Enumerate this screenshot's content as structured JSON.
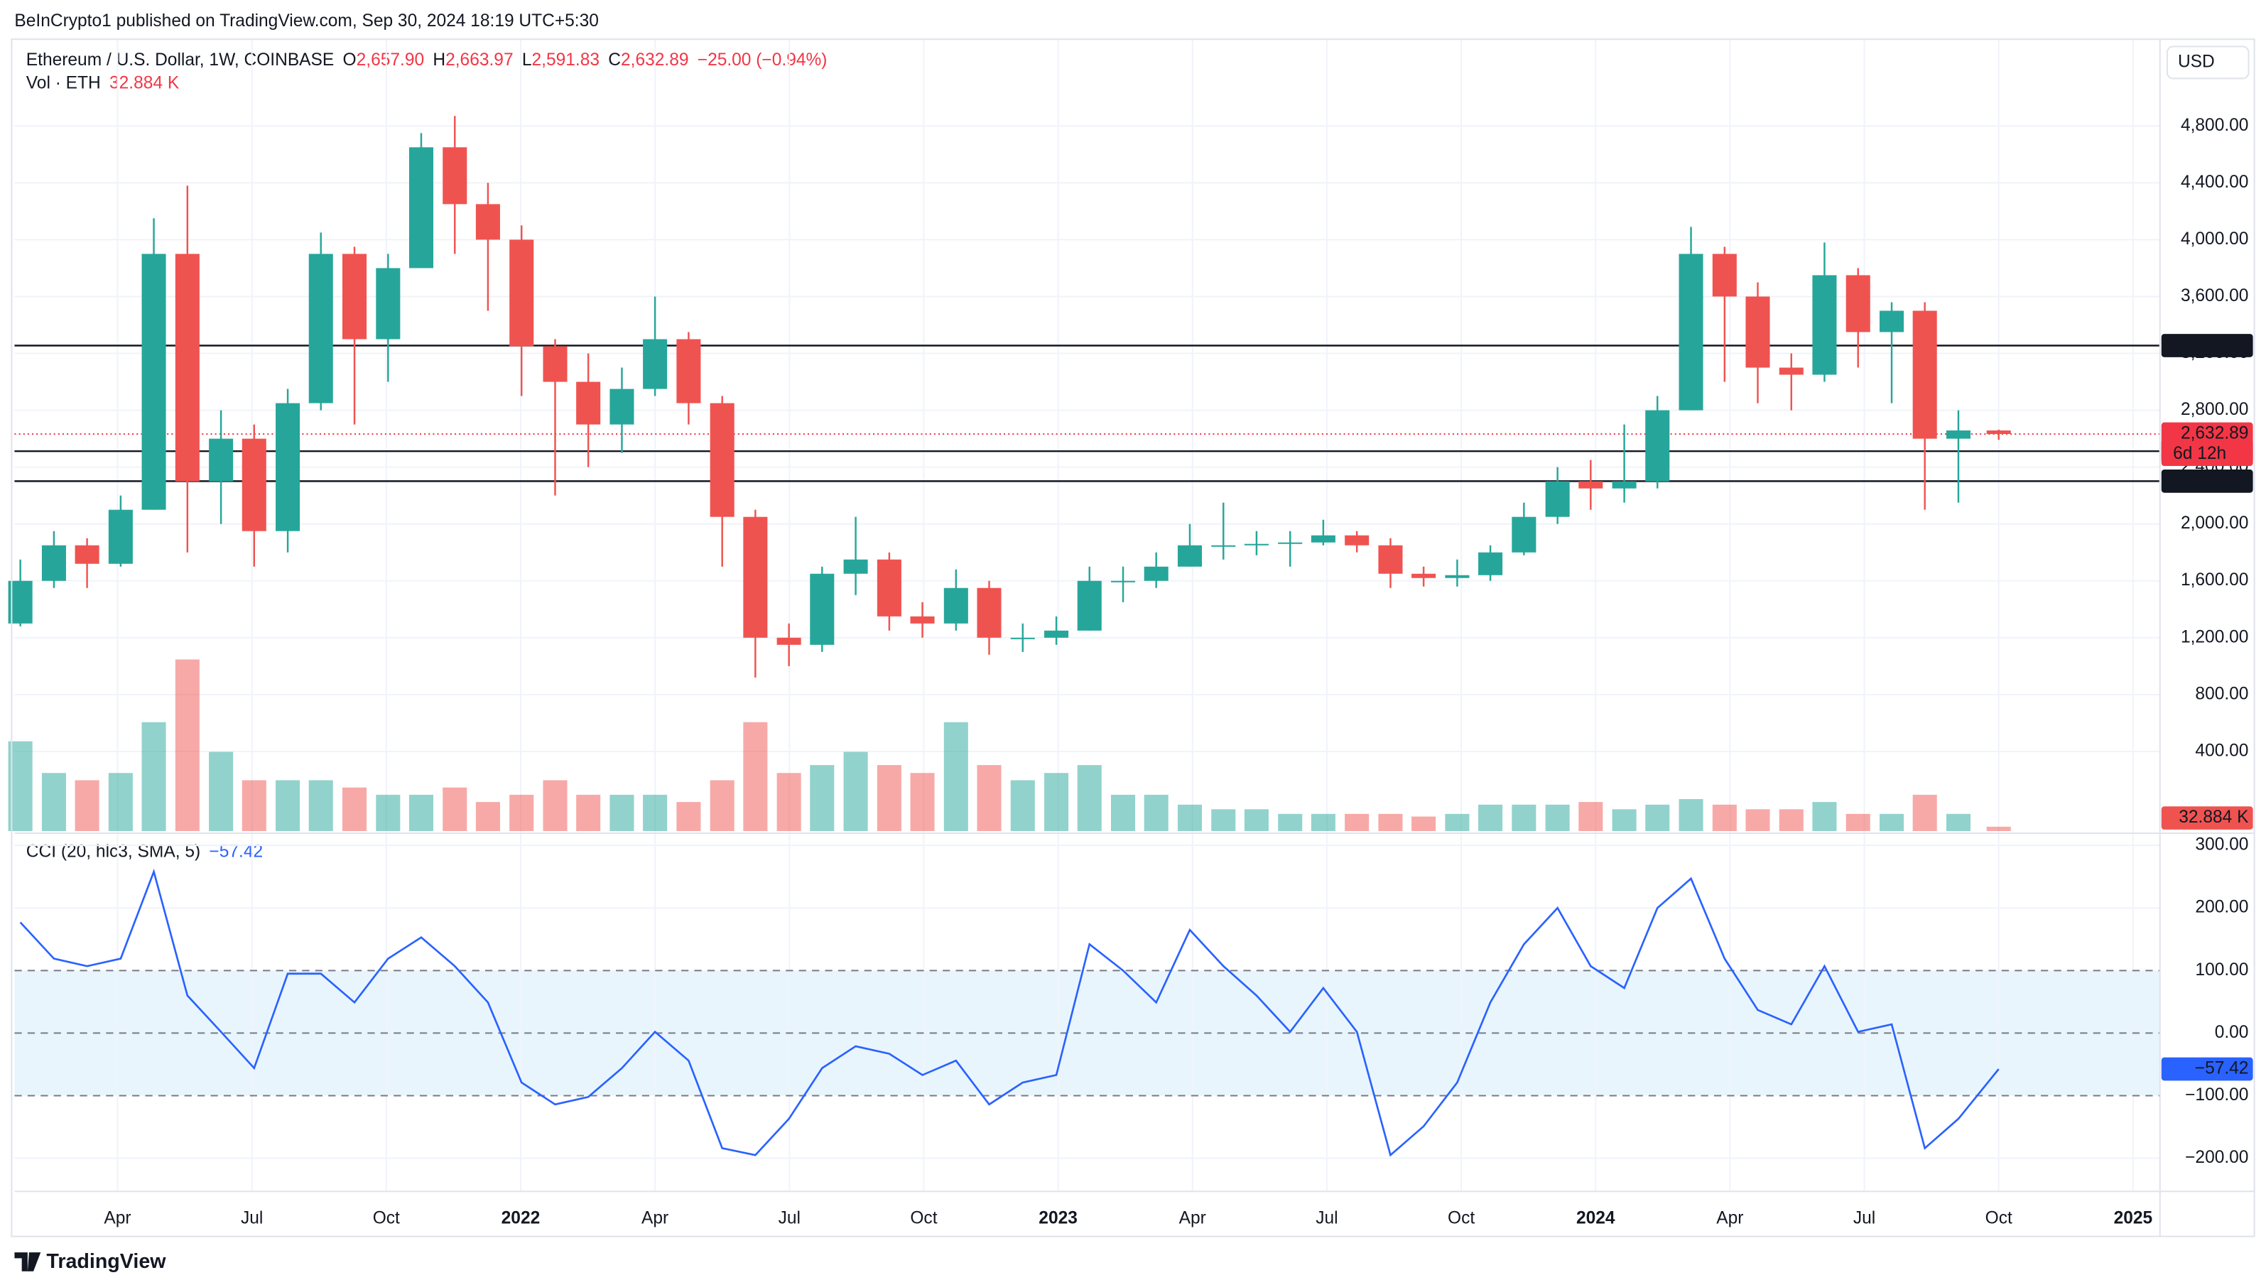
{
  "header": {
    "published": "BeInCrypto1 published on TradingView.com, Sep 30, 2024 18:19 UTC+5:30",
    "symbol": "Ethereum / U.S. Dollar, 1W, COINBASE",
    "ohlc": [
      {
        "key": "O",
        "value": "2,657.90"
      },
      {
        "key": "H",
        "value": "2,663.97"
      },
      {
        "key": "L",
        "value": "2,591.83"
      },
      {
        "key": "C",
        "value": "2,632.89"
      }
    ],
    "change": "−25.00 (−0.94%)",
    "vol_title": "Vol · ETH",
    "vol_value": "32.884 K",
    "cci_title": "CCI (20, hlc3, SMA, 5)",
    "cci_value": "−57.42",
    "currency": "USD",
    "brand": "TradingView"
  },
  "chart_data": {
    "type": "candlestick",
    "up_color": "#26a69a",
    "down_color": "#ef5350",
    "x": [
      0.83,
      1.58,
      2.32,
      3.07,
      3.81,
      4.56,
      5.31,
      6.05,
      6.8,
      7.54,
      8.29,
      9.04,
      9.78,
      10.53,
      11.27,
      12.02,
      12.77,
      13.51,
      14.26,
      15.0,
      15.75,
      16.5,
      17.24,
      17.99,
      18.73,
      19.48,
      20.23,
      20.97,
      21.72,
      22.46,
      23.21,
      23.96,
      24.7,
      25.45,
      26.19,
      26.94,
      27.69,
      28.43,
      29.18,
      29.92,
      30.67,
      31.42,
      32.16,
      32.91,
      33.65,
      34.4,
      35.15,
      35.89,
      36.64,
      37.38,
      38.13,
      38.88,
      39.62,
      40.37,
      41.11,
      41.86,
      42.61,
      43.35,
      44.1,
      45.0
    ],
    "open": [
      1300,
      1600,
      1850,
      1720,
      2100,
      3900,
      2300,
      2600,
      1950,
      2850,
      3900,
      3300,
      3800,
      4650,
      4250,
      4000,
      3250,
      3000,
      2700,
      2950,
      3300,
      2850,
      2050,
      1200,
      1150,
      1650,
      1750,
      1350,
      1300,
      1550,
      1200,
      1200,
      1250,
      1600,
      1600,
      1700,
      1850,
      1850,
      1860,
      1870,
      1920,
      1850,
      1650,
      1620,
      1640,
      1800,
      2050,
      2300,
      2250,
      2300,
      2800,
      3900,
      3600,
      3100,
      3050,
      3750,
      3350,
      3500,
      2600,
      2657.9
    ],
    "high": [
      1750,
      1950,
      1900,
      2200,
      4150,
      4380,
      2800,
      2700,
      2950,
      4050,
      3950,
      3900,
      4750,
      4870,
      4400,
      4100,
      3300,
      3200,
      3100,
      3600,
      3350,
      2900,
      2100,
      1300,
      1700,
      2050,
      1800,
      1450,
      1680,
      1600,
      1300,
      1350,
      1700,
      1700,
      1800,
      2000,
      2150,
      1950,
      1950,
      2030,
      1950,
      1900,
      1700,
      1750,
      1850,
      2150,
      2400,
      2450,
      2700,
      2900,
      4090,
      3950,
      3700,
      3200,
      3980,
      3800,
      3560,
      3560,
      2800,
      2663.97
    ],
    "low": [
      1280,
      1550,
      1550,
      1700,
      2100,
      1800,
      2000,
      1700,
      1800,
      2800,
      2700,
      3000,
      3800,
      3900,
      3500,
      2900,
      2200,
      2400,
      2500,
      2900,
      2700,
      1700,
      920,
      1000,
      1100,
      1500,
      1250,
      1200,
      1250,
      1080,
      1100,
      1150,
      1250,
      1450,
      1550,
      1700,
      1750,
      1780,
      1700,
      1850,
      1800,
      1550,
      1560,
      1560,
      1600,
      1780,
      2000,
      2100,
      2150,
      2250,
      2800,
      3000,
      2850,
      2800,
      3000,
      3100,
      2850,
      2100,
      2150,
      2591.83
    ],
    "close": [
      1600,
      1850,
      1720,
      2100,
      3900,
      2300,
      2600,
      1950,
      2850,
      3900,
      3300,
      3800,
      4650,
      4250,
      4000,
      3250,
      3000,
      2700,
      2950,
      3300,
      2850,
      2050,
      1200,
      1150,
      1650,
      1750,
      1350,
      1300,
      1550,
      1200,
      1200,
      1250,
      1600,
      1600,
      1700,
      1850,
      1850,
      1860,
      1870,
      1920,
      1850,
      1650,
      1620,
      1640,
      1800,
      2050,
      2300,
      2250,
      2300,
      2800,
      3900,
      3600,
      3100,
      3050,
      3750,
      3350,
      3500,
      2600,
      2658,
      2632.89
    ],
    "xlim": [
      0.7,
      48.6
    ],
    "xticks": [
      {
        "value": 3,
        "label": "Apr"
      },
      {
        "value": 6,
        "label": "Jul"
      },
      {
        "value": 9,
        "label": "Oct"
      },
      {
        "value": 12,
        "label": "2022"
      },
      {
        "value": 15,
        "label": "Apr"
      },
      {
        "value": 18,
        "label": "Jul"
      },
      {
        "value": 21,
        "label": "Oct"
      },
      {
        "value": 24,
        "label": "2023"
      },
      {
        "value": 27,
        "label": "Apr"
      },
      {
        "value": 30,
        "label": "Jul"
      },
      {
        "value": 33,
        "label": "Oct"
      },
      {
        "value": 36,
        "label": "2024"
      },
      {
        "value": 39,
        "label": "Apr"
      },
      {
        "value": 42,
        "label": "Jul"
      },
      {
        "value": 45,
        "label": "Oct"
      },
      {
        "value": 48,
        "label": "2025"
      }
    ],
    "ylim": [
      -160,
      5410
    ],
    "yticks": [
      {
        "value": 400,
        "label": "400.00"
      },
      {
        "value": 800,
        "label": "800.00"
      },
      {
        "value": 1200,
        "label": "1,200.00"
      },
      {
        "value": 1600,
        "label": "1,600.00"
      },
      {
        "value": 2000,
        "label": "2,000.00"
      },
      {
        "value": 2400,
        "label": "2,400.00"
      },
      {
        "value": 2800,
        "label": "2,800.00"
      },
      {
        "value": 3200,
        "label": "3,200.00"
      },
      {
        "value": 3600,
        "label": "3,600.00"
      },
      {
        "value": 4000,
        "label": "4,000.00"
      },
      {
        "value": 4400,
        "label": "4,400.00"
      },
      {
        "value": 4800,
        "label": "4,800.00"
      }
    ],
    "levels": [
      {
        "value": 3255.21,
        "label": "3,255.21"
      },
      {
        "value": 2512.17,
        "label": "2,512.17"
      },
      {
        "value": 2301.3,
        "label": "2,301.30"
      }
    ],
    "last_price": {
      "value": 2632.89,
      "label": "2,632.89",
      "countdown": "6d 12h",
      "color": "#f23645"
    },
    "volume": {
      "values": [
        680,
        440,
        385,
        440,
        825,
        1300,
        600,
        385,
        385,
        385,
        330,
        275,
        275,
        330,
        220,
        275,
        385,
        275,
        275,
        275,
        220,
        385,
        825,
        440,
        500,
        600,
        500,
        440,
        825,
        500,
        385,
        440,
        500,
        275,
        275,
        200,
        165,
        165,
        130,
        130,
        130,
        130,
        110,
        130,
        200,
        200,
        200,
        220,
        165,
        200,
        242,
        200,
        165,
        165,
        220,
        130,
        130,
        275,
        130,
        32.884
      ],
      "ylim": [
        0,
        6000
      ]
    },
    "cci": {
      "color": "#2962ff",
      "band": [
        -100,
        100
      ],
      "band_color": "#e3f2fd",
      "values": [
        177,
        119,
        107,
        119,
        258,
        60,
        2,
        -56,
        95,
        95,
        49,
        119,
        153,
        107,
        49,
        -79,
        -114,
        -102,
        -56,
        2,
        -44,
        -184,
        -195,
        -137,
        -56,
        -21,
        -33,
        -67,
        -44,
        -114,
        -79,
        -67,
        142,
        100,
        49,
        165,
        107,
        60,
        2,
        72,
        2,
        -195,
        -149,
        -79,
        49,
        142,
        200,
        107,
        72,
        200,
        247,
        119,
        37,
        14,
        107,
        2,
        14,
        -184,
        -137,
        -57.42
      ],
      "ylim": [
        -253,
        316
      ],
      "yticks": [
        {
          "value": 300,
          "label": "300.00"
        },
        {
          "value": 200,
          "label": "200.00"
        },
        {
          "value": 100,
          "label": "100.00"
        },
        {
          "value": 0,
          "label": "0.00"
        },
        {
          "value": -100,
          "label": "−100.00"
        },
        {
          "value": -200,
          "label": "−200.00"
        }
      ]
    }
  }
}
